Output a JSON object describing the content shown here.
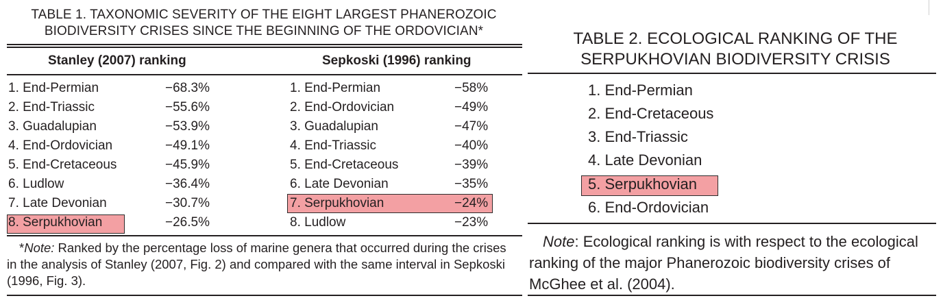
{
  "table1": {
    "title_line1": "TABLE 1. TAXONOMIC SEVERITY OF THE EIGHT LARGEST PHANEROZOIC",
    "title_line2": "BIODIVERSITY CRISES SINCE THE BEGINNING OF THE ORDOVICIAN*",
    "left_header": "Stanley (2007) ranking",
    "right_header": "Sepkoski (1996) ranking",
    "stanley": [
      {
        "name": "1. End-Permian",
        "value": "−68.3%"
      },
      {
        "name": "2. End-Triassic",
        "value": "−55.6%"
      },
      {
        "name": "3. Guadalupian",
        "value": "−53.9%"
      },
      {
        "name": "4. End-Ordovician",
        "value": "−49.1%"
      },
      {
        "name": "5. End-Cretaceous",
        "value": "−45.9%"
      },
      {
        "name": "6. Ludlow",
        "value": "−36.4%"
      },
      {
        "name": "7. Late Devonian",
        "value": "−30.7%"
      },
      {
        "name": "8. Serpukhovian",
        "value": "−26.5%"
      }
    ],
    "sepkoski": [
      {
        "name": "1. End-Permian",
        "value": "−58%"
      },
      {
        "name": "2. End-Ordovician",
        "value": "−49%"
      },
      {
        "name": "3. Guadalupian",
        "value": "−47%"
      },
      {
        "name": "4. End-Triassic",
        "value": "−40%"
      },
      {
        "name": "5. End-Cretaceous",
        "value": "−39%"
      },
      {
        "name": "6. Late Devonian",
        "value": "−35%"
      },
      {
        "name": "7. Serpukhovian",
        "value": "−24%"
      },
      {
        "name": "8. Ludlow",
        "value": "−23%"
      }
    ],
    "note_star": "*",
    "note_label": "Note:",
    "note_text": " Ranked by the percentage loss of marine genera that occurred during the crises in the analysis of Stanley (2007, Fig. 2) and compared with the same interval in Sepkoski (1996, Fig. 3).",
    "highlight_color": "#f3a0a3"
  },
  "table2": {
    "title_line1": "TABLE 2. ECOLOGICAL RANKING OF THE",
    "title_line2": "SERPUKHOVIAN BIODIVERSITY CRISIS",
    "items": [
      "1. End-Permian",
      "2. End-Cretaceous",
      "3. End-Triassic",
      "4. Late Devonian",
      "5. Serpukhovian",
      "6. End-Ordovician"
    ],
    "note_label": "Note",
    "note_text": ": Ecological ranking is with respect to the ecological ranking of the major Phanerozoic biodiversity crises of McGhee et al. (2004)."
  }
}
